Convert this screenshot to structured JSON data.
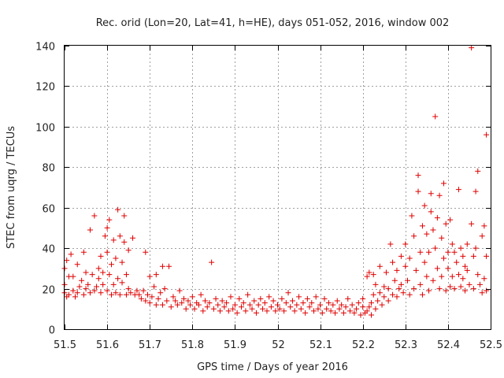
{
  "chart_data": {
    "type": "scatter",
    "title": "Rec. orid (Lon=20, Lat=41, h=HE), days 051-052, 2016, window 002",
    "xlabel": "GPS time / Days of year 2016",
    "ylabel": "STEC from uqrg / TECUs",
    "xlim": [
      51.5,
      52.5
    ],
    "ylim": [
      0,
      140
    ],
    "x_ticks": [
      51.5,
      51.6,
      51.7,
      51.8,
      51.9,
      52.0,
      52.1,
      52.2,
      52.3,
      52.4,
      52.5
    ],
    "x_tick_labels": [
      "51.5",
      "51.6",
      "51.7",
      "51.8",
      "51.9",
      "52",
      "52.1",
      "52.2",
      "52.3",
      "52.4",
      "52.5"
    ],
    "y_ticks": [
      0,
      20,
      40,
      60,
      80,
      100,
      120,
      140
    ],
    "y_tick_labels": [
      "0",
      "20",
      "40",
      "60",
      "80",
      "100",
      "120",
      "140"
    ],
    "grid": true,
    "marker": "plus",
    "color": "#e00000",
    "series": [
      {
        "name": "STEC",
        "points": [
          [
            51.5,
            18
          ],
          [
            51.5,
            22
          ],
          [
            51.5,
            30
          ],
          [
            51.505,
            16
          ],
          [
            51.505,
            34
          ],
          [
            51.51,
            17
          ],
          [
            51.51,
            26
          ],
          [
            51.515,
            37
          ],
          [
            51.52,
            19
          ],
          [
            51.52,
            26
          ],
          [
            51.525,
            16
          ],
          [
            51.53,
            18
          ],
          [
            51.53,
            32
          ],
          [
            51.535,
            21
          ],
          [
            51.54,
            24
          ],
          [
            51.545,
            17
          ],
          [
            51.545,
            38
          ],
          [
            51.55,
            20
          ],
          [
            51.55,
            28
          ],
          [
            51.555,
            22
          ],
          [
            51.56,
            49
          ],
          [
            51.56,
            18
          ],
          [
            51.565,
            27
          ],
          [
            51.57,
            19
          ],
          [
            51.57,
            56
          ],
          [
            51.575,
            21
          ],
          [
            51.58,
            25
          ],
          [
            51.58,
            30
          ],
          [
            51.585,
            36
          ],
          [
            51.585,
            18
          ],
          [
            51.59,
            28
          ],
          [
            51.59,
            22
          ],
          [
            51.595,
            46
          ],
          [
            51.6,
            50
          ],
          [
            51.6,
            38
          ],
          [
            51.6,
            19
          ],
          [
            51.605,
            54
          ],
          [
            51.605,
            27
          ],
          [
            51.61,
            17
          ],
          [
            51.61,
            32
          ],
          [
            51.615,
            44
          ],
          [
            51.615,
            22
          ],
          [
            51.62,
            35
          ],
          [
            51.62,
            18
          ],
          [
            51.625,
            59
          ],
          [
            51.625,
            25
          ],
          [
            51.63,
            46
          ],
          [
            51.63,
            17
          ],
          [
            51.635,
            33
          ],
          [
            51.635,
            23
          ],
          [
            51.64,
            56
          ],
          [
            51.64,
            43
          ],
          [
            51.645,
            27
          ],
          [
            51.645,
            17
          ],
          [
            51.65,
            39
          ],
          [
            51.65,
            20
          ],
          [
            51.655,
            18
          ],
          [
            51.66,
            45
          ],
          [
            51.665,
            17
          ],
          [
            51.67,
            19
          ],
          [
            51.675,
            17
          ],
          [
            51.68,
            15
          ],
          [
            51.685,
            19
          ],
          [
            51.69,
            38
          ],
          [
            51.69,
            14
          ],
          [
            51.695,
            17
          ],
          [
            51.7,
            13
          ],
          [
            51.7,
            26
          ],
          [
            51.705,
            16
          ],
          [
            51.71,
            21
          ],
          [
            51.715,
            12
          ],
          [
            51.715,
            27
          ],
          [
            51.72,
            15
          ],
          [
            51.725,
            18
          ],
          [
            51.73,
            31
          ],
          [
            51.73,
            12
          ],
          [
            51.735,
            20
          ],
          [
            51.74,
            14
          ],
          [
            51.745,
            31
          ],
          [
            51.75,
            11
          ],
          [
            51.755,
            16
          ],
          [
            51.76,
            14
          ],
          [
            51.765,
            12
          ],
          [
            51.77,
            19
          ],
          [
            51.775,
            13
          ],
          [
            51.78,
            15
          ],
          [
            51.785,
            10
          ],
          [
            51.79,
            14
          ],
          [
            51.795,
            12
          ],
          [
            51.8,
            16
          ],
          [
            51.805,
            10
          ],
          [
            51.81,
            13
          ],
          [
            51.815,
            12
          ],
          [
            51.82,
            17
          ],
          [
            51.825,
            9
          ],
          [
            51.83,
            14
          ],
          [
            51.835,
            11
          ],
          [
            51.84,
            13
          ],
          [
            51.845,
            33
          ],
          [
            51.85,
            10
          ],
          [
            51.855,
            15
          ],
          [
            51.86,
            12
          ],
          [
            51.865,
            9
          ],
          [
            51.87,
            14
          ],
          [
            51.875,
            11
          ],
          [
            51.88,
            13
          ],
          [
            51.885,
            9
          ],
          [
            51.89,
            16
          ],
          [
            51.895,
            10
          ],
          [
            51.9,
            12
          ],
          [
            51.905,
            8
          ],
          [
            51.91,
            15
          ],
          [
            51.915,
            11
          ],
          [
            51.92,
            13
          ],
          [
            51.925,
            9
          ],
          [
            51.93,
            17
          ],
          [
            51.935,
            12
          ],
          [
            51.94,
            10
          ],
          [
            51.945,
            14
          ],
          [
            51.95,
            8
          ],
          [
            51.955,
            12
          ],
          [
            51.96,
            15
          ],
          [
            51.965,
            10
          ],
          [
            51.97,
            13
          ],
          [
            51.975,
            9
          ],
          [
            51.98,
            16
          ],
          [
            51.985,
            11
          ],
          [
            51.99,
            14
          ],
          [
            51.995,
            9
          ],
          [
            52.0,
            12
          ],
          [
            52.005,
            10
          ],
          [
            52.01,
            15
          ],
          [
            52.015,
            9
          ],
          [
            52.02,
            13
          ],
          [
            52.025,
            18
          ],
          [
            52.03,
            11
          ],
          [
            52.035,
            14
          ],
          [
            52.04,
            9
          ],
          [
            52.045,
            12
          ],
          [
            52.05,
            16
          ],
          [
            52.055,
            10
          ],
          [
            52.06,
            13
          ],
          [
            52.065,
            8
          ],
          [
            52.07,
            15
          ],
          [
            52.075,
            11
          ],
          [
            52.08,
            13
          ],
          [
            52.085,
            9
          ],
          [
            52.09,
            16
          ],
          [
            52.095,
            10
          ],
          [
            52.1,
            12
          ],
          [
            52.105,
            8
          ],
          [
            52.11,
            15
          ],
          [
            52.115,
            10
          ],
          [
            52.12,
            13
          ],
          [
            52.125,
            9
          ],
          [
            52.13,
            12
          ],
          [
            52.135,
            8
          ],
          [
            52.14,
            14
          ],
          [
            52.145,
            10
          ],
          [
            52.15,
            12
          ],
          [
            52.155,
            8
          ],
          [
            52.16,
            11
          ],
          [
            52.165,
            15
          ],
          [
            52.17,
            9
          ],
          [
            52.175,
            12
          ],
          [
            52.18,
            8
          ],
          [
            52.185,
            10
          ],
          [
            52.19,
            13
          ],
          [
            52.195,
            7
          ],
          [
            52.2,
            11
          ],
          [
            52.2,
            15
          ],
          [
            52.205,
            8
          ],
          [
            52.21,
            9
          ],
          [
            52.21,
            26
          ],
          [
            52.215,
            11
          ],
          [
            52.215,
            28
          ],
          [
            52.22,
            7
          ],
          [
            52.22,
            13
          ],
          [
            52.225,
            17
          ],
          [
            52.225,
            27
          ],
          [
            52.23,
            10
          ],
          [
            52.23,
            22
          ],
          [
            52.235,
            14
          ],
          [
            52.24,
            18
          ],
          [
            52.24,
            31
          ],
          [
            52.245,
            12
          ],
          [
            52.25,
            21
          ],
          [
            52.25,
            16
          ],
          [
            52.255,
            28
          ],
          [
            52.26,
            14
          ],
          [
            52.26,
            20
          ],
          [
            52.265,
            42
          ],
          [
            52.27,
            17
          ],
          [
            52.27,
            33
          ],
          [
            52.275,
            24
          ],
          [
            52.28,
            16
          ],
          [
            52.28,
            29
          ],
          [
            52.285,
            20
          ],
          [
            52.29,
            36
          ],
          [
            52.29,
            22
          ],
          [
            52.295,
            18
          ],
          [
            52.3,
            31
          ],
          [
            52.3,
            42
          ],
          [
            52.305,
            24
          ],
          [
            52.31,
            17
          ],
          [
            52.31,
            35
          ],
          [
            52.315,
            56
          ],
          [
            52.32,
            20
          ],
          [
            52.32,
            46
          ],
          [
            52.325,
            29
          ],
          [
            52.33,
            76
          ],
          [
            52.33,
            68
          ],
          [
            52.335,
            38
          ],
          [
            52.335,
            22
          ],
          [
            52.34,
            17
          ],
          [
            52.34,
            51
          ],
          [
            52.345,
            61
          ],
          [
            52.345,
            33
          ],
          [
            52.35,
            47
          ],
          [
            52.35,
            26
          ],
          [
            52.355,
            19
          ],
          [
            52.355,
            38
          ],
          [
            52.36,
            67
          ],
          [
            52.36,
            58
          ],
          [
            52.365,
            49
          ],
          [
            52.365,
            24
          ],
          [
            52.37,
            105
          ],
          [
            52.37,
            40
          ],
          [
            52.375,
            55
          ],
          [
            52.375,
            30
          ],
          [
            52.38,
            20
          ],
          [
            52.38,
            66
          ],
          [
            52.385,
            45
          ],
          [
            52.385,
            26
          ],
          [
            52.39,
            72
          ],
          [
            52.39,
            35
          ],
          [
            52.395,
            19
          ],
          [
            52.395,
            52
          ],
          [
            52.4,
            30
          ],
          [
            52.4,
            38
          ],
          [
            52.405,
            21
          ],
          [
            52.405,
            54
          ],
          [
            52.41,
            42
          ],
          [
            52.41,
            26
          ],
          [
            52.415,
            38
          ],
          [
            52.415,
            20
          ],
          [
            52.42,
            33
          ],
          [
            52.425,
            27
          ],
          [
            52.425,
            69
          ],
          [
            52.43,
            21
          ],
          [
            52.43,
            40
          ],
          [
            52.435,
            36
          ],
          [
            52.435,
            25
          ],
          [
            52.44,
            31
          ],
          [
            52.44,
            19
          ],
          [
            52.445,
            42
          ],
          [
            52.445,
            29
          ],
          [
            52.45,
            22
          ],
          [
            52.455,
            139
          ],
          [
            52.455,
            52
          ],
          [
            52.46,
            36
          ],
          [
            52.46,
            20
          ],
          [
            52.465,
            68
          ],
          [
            52.465,
            40
          ],
          [
            52.47,
            78
          ],
          [
            52.47,
            27
          ],
          [
            52.475,
            22
          ],
          [
            52.48,
            18
          ],
          [
            52.48,
            46
          ],
          [
            52.485,
            51
          ],
          [
            52.485,
            25
          ],
          [
            52.49,
            96
          ],
          [
            52.49,
            19
          ],
          [
            52.49,
            36
          ]
        ]
      }
    ]
  }
}
